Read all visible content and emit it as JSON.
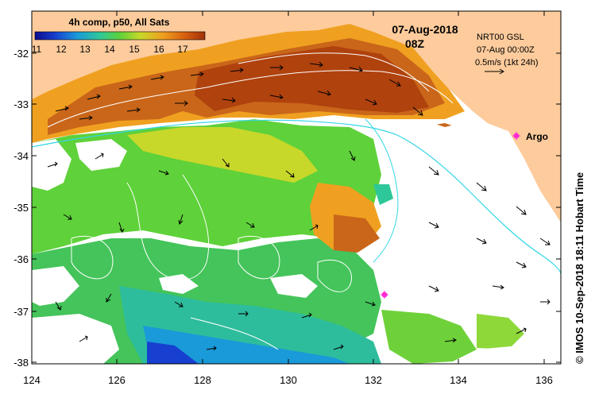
{
  "title": {
    "composite": "4h comp, p50, All Sats",
    "date": "07-Aug-2018",
    "time": "08Z"
  },
  "colorbar": {
    "ticks": [
      "11",
      "12",
      "13",
      "14",
      "15",
      "16",
      "17"
    ],
    "colors": [
      "#0a0a8c",
      "#1740d0",
      "#1a9ad8",
      "#2ec79a",
      "#5fd13a",
      "#c8d82a",
      "#f0a020",
      "#d86010",
      "#a0300a"
    ]
  },
  "current_info": {
    "model": "NRT00 GSL",
    "datetime": "07-Aug 00:00Z",
    "scale": "0.5m/s (1kt 24h)"
  },
  "argo": {
    "label": "Argo",
    "color": "#ff2ad4"
  },
  "axes": {
    "x_ticks": [
      "124",
      "126",
      "128",
      "130",
      "132",
      "134",
      "136"
    ],
    "y_ticks": [
      "-32",
      "-33",
      "-34",
      "-35",
      "-36",
      "-37",
      "-38"
    ]
  },
  "colors": {
    "land": "#fdcb9c",
    "frame": "#000000",
    "contour": "#ffffff",
    "bathymetry": "#33d6e6"
  },
  "copyright": "© IMOS 10-Sep-2018 18:11 Hobart Time"
}
